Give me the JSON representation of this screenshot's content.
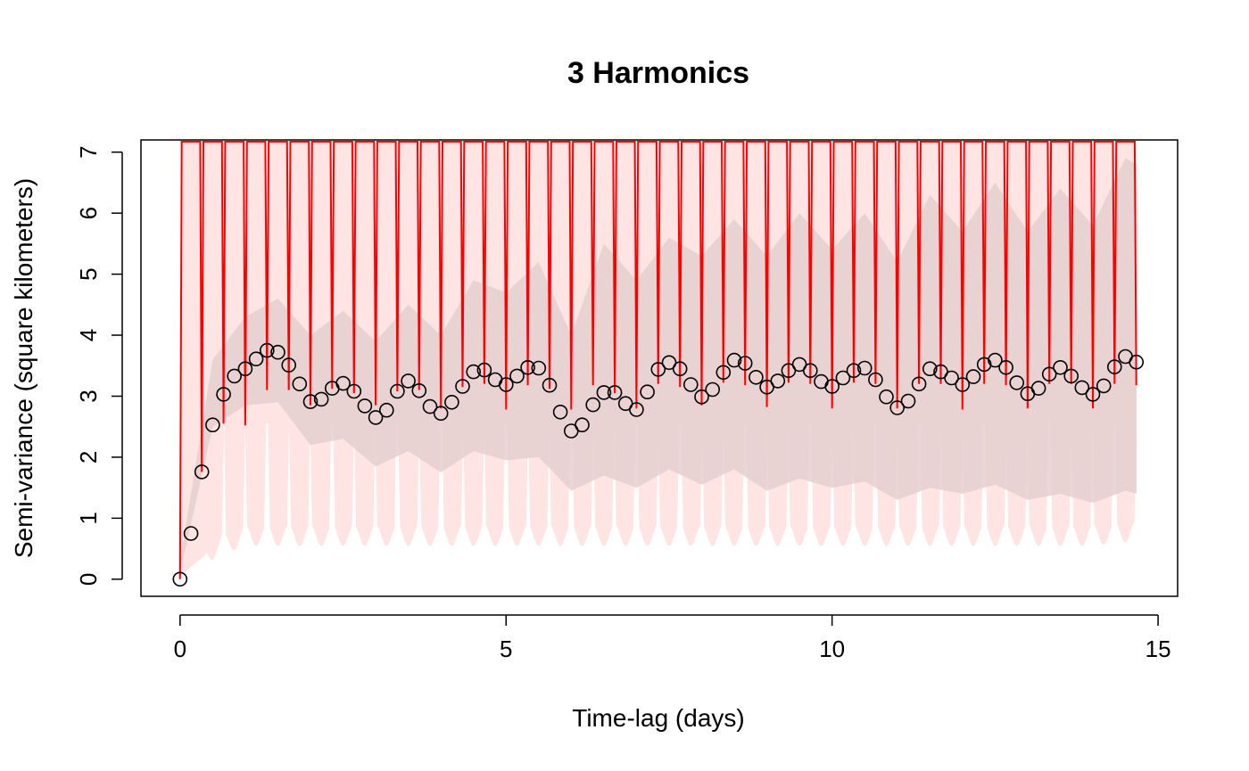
{
  "colors": {
    "fit_line": "#ff0000",
    "outer_band": "#ffe4e4",
    "inner_band": "#e5cfcf",
    "points": "#000000"
  },
  "chart_data": {
    "type": "scatter",
    "title": "3 Harmonics",
    "xlabel": "Time-lag (days)",
    "ylabel": "Semi-variance (square kilometers)",
    "xlim": [
      -0.6,
      15.3
    ],
    "ylim": [
      -0.28,
      7.2
    ],
    "xticks": [
      "0",
      "5",
      "10",
      "15"
    ],
    "yticks": [
      "0",
      "1",
      "2",
      "3",
      "4",
      "5",
      "6",
      "7"
    ],
    "grid": false,
    "legend": "none",
    "series": [
      {
        "kind": "points",
        "x": [
          0,
          0.167,
          0.333,
          0.5,
          0.667,
          0.833,
          1.0,
          1.167,
          1.333,
          1.5,
          1.667,
          1.833,
          2.0,
          2.167,
          2.333,
          2.5,
          2.667,
          2.833,
          3.0,
          3.167,
          3.333,
          3.5,
          3.667,
          3.833,
          4.0,
          4.167,
          4.333,
          4.5,
          4.667,
          4.833,
          5.0,
          5.167,
          5.333,
          5.5,
          5.667,
          5.833,
          6.0,
          6.167,
          6.333,
          6.5,
          6.667,
          6.833,
          7.0,
          7.167,
          7.333,
          7.5,
          7.667,
          7.833,
          8.0,
          8.167,
          8.333,
          8.5,
          8.667,
          8.833,
          9.0,
          9.167,
          9.333,
          9.5,
          9.667,
          9.833,
          10.0,
          10.167,
          10.333,
          10.5,
          10.667,
          10.833,
          11.0,
          11.167,
          11.333,
          11.5,
          11.667,
          11.833,
          12.0,
          12.167,
          12.333,
          12.5,
          12.667,
          12.833,
          13.0,
          13.167,
          13.333,
          13.5,
          13.667,
          13.833,
          14.0,
          14.167,
          14.333,
          14.5,
          14.667
        ],
        "y": [
          0.0,
          0.75,
          1.76,
          2.53,
          3.03,
          3.33,
          3.45,
          3.61,
          3.75,
          3.72,
          3.51,
          3.2,
          2.91,
          2.95,
          3.13,
          3.21,
          3.08,
          2.84,
          2.65,
          2.77,
          3.08,
          3.25,
          3.09,
          2.83,
          2.72,
          2.9,
          3.16,
          3.4,
          3.43,
          3.27,
          3.19,
          3.33,
          3.47,
          3.46,
          3.18,
          2.74,
          2.43,
          2.53,
          2.86,
          3.06,
          3.06,
          2.88,
          2.78,
          3.07,
          3.44,
          3.55,
          3.45,
          3.19,
          2.99,
          3.11,
          3.39,
          3.59,
          3.54,
          3.31,
          3.15,
          3.25,
          3.42,
          3.52,
          3.42,
          3.24,
          3.16,
          3.3,
          3.42,
          3.46,
          3.27,
          2.99,
          2.81,
          2.92,
          3.2,
          3.45,
          3.4,
          3.3,
          3.19,
          3.32,
          3.52,
          3.59,
          3.47,
          3.22,
          3.04,
          3.13,
          3.36,
          3.47,
          3.33,
          3.14,
          3.03,
          3.17,
          3.48,
          3.65,
          3.56
        ]
      },
      {
        "kind": "fitted-curve",
        "model": "periodic, period 1/3 day",
        "upper_bound": 7.2,
        "trough_x": [
          0,
          0.333,
          0.667,
          1.0,
          1.333,
          1.667,
          2.0,
          2.333,
          2.667,
          3.0,
          3.333,
          3.667,
          4.0,
          4.333,
          4.667,
          5.0,
          5.333,
          5.667,
          6.0,
          6.333,
          6.667,
          7.0,
          7.333,
          7.667,
          8.0,
          8.333,
          8.667,
          9.0,
          9.333,
          9.667,
          10.0,
          10.333,
          10.667,
          11.0,
          11.333,
          11.667,
          12.0,
          12.333,
          12.667,
          13.0,
          13.333,
          13.667,
          14.0,
          14.333,
          14.667
        ],
        "trough_y": [
          0.0,
          1.76,
          2.55,
          2.52,
          3.1,
          3.1,
          2.85,
          3.12,
          3.05,
          2.85,
          3.08,
          3.1,
          2.8,
          3.15,
          3.2,
          2.78,
          3.18,
          3.12,
          2.78,
          3.18,
          3.05,
          2.8,
          3.2,
          3.15,
          2.85,
          3.22,
          3.18,
          2.82,
          3.22,
          3.2,
          2.8,
          3.22,
          3.2,
          2.8,
          3.2,
          3.2,
          2.78,
          3.2,
          3.18,
          2.8,
          3.2,
          3.2,
          2.8,
          3.2,
          3.18
        ]
      },
      {
        "kind": "inner-band",
        "x": [
          0,
          0.5,
          1,
          1.5,
          2,
          2.5,
          3,
          3.5,
          4,
          4.5,
          5,
          5.5,
          6,
          6.5,
          7,
          7.5,
          8,
          8.5,
          9,
          9.5,
          10,
          10.5,
          11,
          11.5,
          12,
          12.5,
          13,
          13.5,
          14,
          14.5,
          14.67
        ],
        "upper": [
          0.3,
          3.6,
          4.3,
          4.6,
          4.0,
          4.4,
          3.9,
          4.5,
          4.0,
          4.9,
          4.7,
          5.2,
          4.0,
          5.5,
          4.9,
          5.6,
          5.3,
          5.9,
          5.3,
          6.0,
          5.4,
          6.0,
          5.2,
          6.3,
          5.7,
          6.5,
          5.7,
          6.4,
          5.8,
          6.9,
          6.8
        ],
        "lower": [
          0.1,
          2.5,
          2.85,
          2.9,
          2.2,
          2.3,
          1.85,
          2.1,
          1.75,
          2.1,
          1.95,
          2.0,
          1.45,
          1.7,
          1.5,
          1.8,
          1.55,
          1.8,
          1.45,
          1.65,
          1.5,
          1.6,
          1.3,
          1.5,
          1.4,
          1.55,
          1.3,
          1.4,
          1.25,
          1.45,
          1.4
        ]
      },
      {
        "kind": "outer-band",
        "lower_x": [
          0,
          0.5,
          1,
          2,
          4,
          6,
          8,
          10,
          12,
          14,
          14.67
        ],
        "lower_y": [
          0.05,
          0.5,
          0.72,
          0.72,
          0.72,
          0.72,
          0.72,
          0.72,
          0.72,
          0.72,
          0.8
        ]
      }
    ]
  }
}
